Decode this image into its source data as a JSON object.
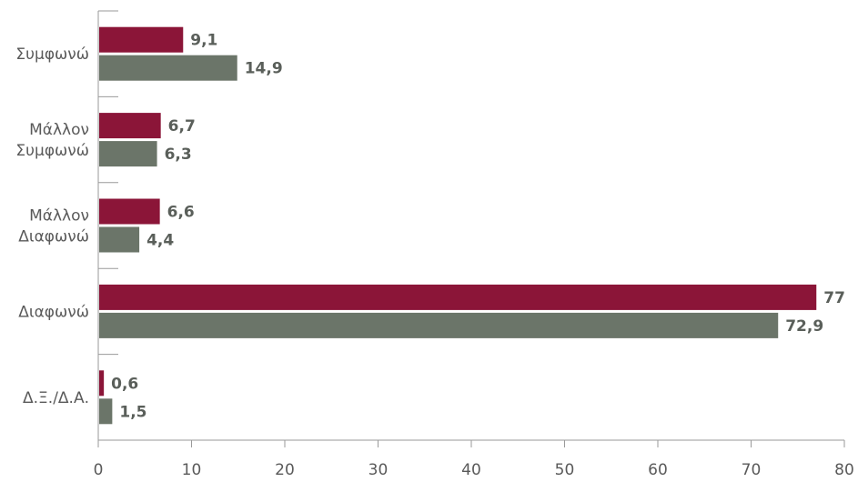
{
  "chart_data": {
    "type": "bar",
    "orientation": "horizontal",
    "categories": [
      [
        "Συμφωνώ"
      ],
      [
        "Μάλλον",
        "Συμφωνώ"
      ],
      [
        "Μάλλον",
        "Διαφωνώ"
      ],
      [
        "Διαφωνώ"
      ],
      [
        "Δ.Ξ./Δ.Α."
      ]
    ],
    "series": [
      {
        "color": "#8b1538",
        "values": [
          9.1,
          6.7,
          6.6,
          77,
          0.6
        ],
        "labels": [
          "9,1",
          "6,7",
          "6,6",
          "77",
          "0,6"
        ]
      },
      {
        "color": "#6b7569",
        "values": [
          14.9,
          6.3,
          4.4,
          72.9,
          1.5
        ],
        "labels": [
          "14,9",
          "6,3",
          "4,4",
          "72,9",
          "1,5"
        ]
      }
    ],
    "xlim": [
      0,
      80
    ],
    "xticks": [
      0,
      10,
      20,
      30,
      40,
      50,
      60,
      70,
      80
    ],
    "grid": false,
    "legend": false
  }
}
